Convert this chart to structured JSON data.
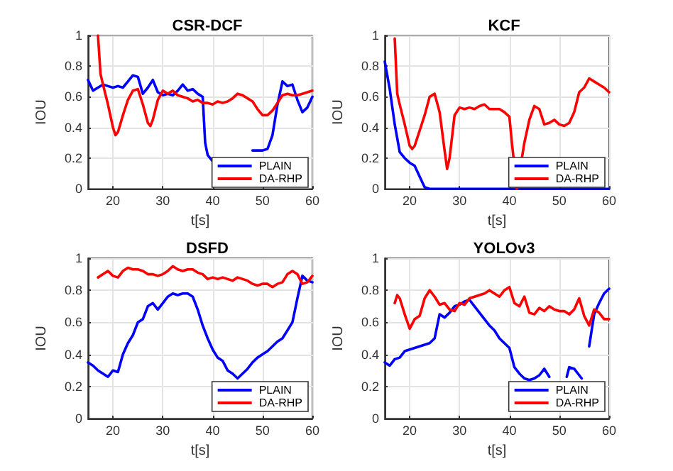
{
  "chart_data": [
    {
      "type": "line",
      "title": "CSR-DCF",
      "xlabel": "t[s]",
      "ylabel": "IOU",
      "xlim": [
        15,
        60
      ],
      "xticks": [
        20,
        30,
        40,
        50,
        60
      ],
      "ylim": [
        0,
        1
      ],
      "yticks": [
        0,
        0.2,
        0.4,
        0.6,
        0.8,
        1
      ],
      "grid": true,
      "legend": "bottom right",
      "marker": "none",
      "line_style": "solid",
      "series": [
        {
          "name": "PLAIN",
          "color": "#0000ff",
          "x": [
            15,
            16,
            17,
            18,
            19,
            20,
            21,
            22,
            23,
            24,
            25,
            26,
            27,
            28,
            29,
            30,
            31,
            32,
            33,
            34,
            35,
            36,
            37,
            38,
            38.5,
            39,
            40,
            41,
            48,
            49,
            50,
            51,
            52,
            53,
            54,
            55,
            56,
            57,
            58,
            59,
            60
          ],
          "values": [
            0.71,
            0.64,
            0.66,
            0.68,
            0.67,
            0.66,
            0.67,
            0.66,
            0.7,
            0.74,
            0.73,
            0.62,
            0.66,
            0.71,
            0.63,
            0.61,
            0.62,
            0.61,
            0.64,
            0.68,
            0.64,
            0.65,
            0.62,
            0.6,
            0.3,
            0.22,
            0.18,
            null,
            0.25,
            0.25,
            0.25,
            0.26,
            0.35,
            0.55,
            0.7,
            0.67,
            0.68,
            0.58,
            0.5,
            0.53,
            0.6
          ]
        },
        {
          "name": "DA-RHP",
          "color": "#ff0000",
          "x": [
            17,
            17.5,
            18,
            19,
            20,
            20.5,
            21,
            22,
            23,
            24,
            25,
            26,
            27,
            27.5,
            28,
            29,
            30,
            31,
            32,
            33,
            34,
            35,
            36,
            37,
            38,
            39,
            40,
            41,
            42,
            43,
            44,
            45,
            46,
            47,
            48,
            49,
            50,
            51,
            52,
            53,
            54,
            55,
            56,
            57,
            58,
            59,
            60
          ],
          "values": [
            1,
            0.75,
            0.68,
            0.55,
            0.4,
            0.35,
            0.37,
            0.48,
            0.58,
            0.64,
            0.65,
            0.55,
            0.43,
            0.41,
            0.45,
            0.58,
            0.64,
            0.62,
            0.64,
            0.61,
            0.6,
            0.59,
            0.57,
            0.58,
            0.56,
            0.56,
            0.55,
            0.57,
            0.56,
            0.57,
            0.59,
            0.62,
            0.61,
            0.59,
            0.57,
            0.52,
            0.48,
            0.48,
            0.51,
            0.56,
            0.61,
            0.62,
            0.61,
            0.61,
            0.62,
            0.63,
            0.64
          ]
        }
      ]
    },
    {
      "type": "line",
      "title": "KCF",
      "xlabel": "t[s]",
      "ylabel": "IOU",
      "xlim": [
        15,
        60
      ],
      "xticks": [
        20,
        30,
        40,
        50,
        60
      ],
      "ylim": [
        0,
        1
      ],
      "yticks": [
        0,
        0.2,
        0.4,
        0.6,
        0.8,
        1
      ],
      "grid": true,
      "legend": "bottom right",
      "marker": "none",
      "line_style": "solid",
      "series": [
        {
          "name": "PLAIN",
          "color": "#0000ff",
          "x": [
            15,
            16,
            17,
            18,
            19,
            20,
            21,
            22,
            23,
            24,
            30,
            40,
            50,
            60
          ],
          "values": [
            0.83,
            0.65,
            0.42,
            0.24,
            0.2,
            0.17,
            0.15,
            0.08,
            0.01,
            0,
            0,
            0,
            0,
            0
          ]
        },
        {
          "name": "DA-RHP",
          "color": "#ff0000",
          "x": [
            17,
            17.5,
            18,
            19,
            20,
            20.5,
            21,
            22,
            23,
            24,
            25,
            26,
            27,
            27.5,
            28,
            29,
            30,
            31,
            32,
            33,
            34,
            35,
            36,
            37,
            38,
            39,
            40,
            40.5,
            41.5,
            43,
            44,
            45,
            46,
            47,
            48,
            49,
            50,
            51,
            52,
            53,
            54,
            55,
            56,
            57,
            58,
            59,
            60
          ],
          "values": [
            0.98,
            0.62,
            0.55,
            0.42,
            0.28,
            0.26,
            0.28,
            0.38,
            0.48,
            0.6,
            0.62,
            0.5,
            0.25,
            0.13,
            0.2,
            0.48,
            0.53,
            0.52,
            0.53,
            0.52,
            0.54,
            0.55,
            0.52,
            0.52,
            0.52,
            0.5,
            0.47,
            0.3,
            0,
            0.3,
            0.45,
            0.54,
            0.52,
            0.42,
            0.43,
            0.45,
            0.42,
            0.41,
            0.43,
            0.5,
            0.63,
            0.66,
            0.72,
            0.7,
            0.68,
            0.66,
            0.63
          ]
        }
      ]
    },
    {
      "type": "line",
      "title": "DSFD",
      "xlabel": "t[s]",
      "ylabel": "IOU",
      "xlim": [
        15,
        60
      ],
      "xticks": [
        20,
        30,
        40,
        50,
        60
      ],
      "ylim": [
        0,
        1
      ],
      "yticks": [
        0,
        0.2,
        0.4,
        0.6,
        0.8,
        1
      ],
      "grid": true,
      "legend": "bottom right",
      "marker": "none",
      "line_style": "solid",
      "series": [
        {
          "name": "PLAIN",
          "color": "#0000ff",
          "x": [
            15,
            16,
            17,
            18,
            19,
            20,
            21,
            22,
            23,
            24,
            25,
            26,
            27,
            28,
            29,
            30,
            31,
            32,
            33,
            34,
            35,
            36,
            37,
            38,
            39,
            40,
            41,
            42,
            43,
            44,
            45,
            46,
            47,
            48,
            49,
            50,
            51,
            52,
            53,
            54,
            55,
            56,
            57,
            58,
            59,
            60
          ],
          "values": [
            0.35,
            0.33,
            0.3,
            0.28,
            0.26,
            0.3,
            0.29,
            0.4,
            0.47,
            0.52,
            0.6,
            0.62,
            0.7,
            0.72,
            0.68,
            0.72,
            0.76,
            0.78,
            0.77,
            0.78,
            0.78,
            0.76,
            0.68,
            0.58,
            0.5,
            0.43,
            0.38,
            0.36,
            0.3,
            0.28,
            0.25,
            0.28,
            0.31,
            0.35,
            0.38,
            0.4,
            0.42,
            0.45,
            0.48,
            0.5,
            0.55,
            0.6,
            0.75,
            0.89,
            0.86,
            0.85
          ]
        },
        {
          "name": "DA-RHP",
          "color": "#ff0000",
          "x": [
            17,
            18,
            19,
            20,
            21,
            22,
            23,
            24,
            25,
            26,
            27,
            28,
            29,
            30,
            31,
            32,
            33,
            34,
            35,
            36,
            37,
            38,
            39,
            40,
            41,
            42,
            43,
            44,
            45,
            46,
            47,
            48,
            49,
            50,
            51,
            52,
            53,
            54,
            55,
            56,
            57,
            58,
            59,
            60
          ],
          "values": [
            0.88,
            0.9,
            0.92,
            0.89,
            0.88,
            0.92,
            0.94,
            0.93,
            0.93,
            0.92,
            0.9,
            0.9,
            0.89,
            0.9,
            0.92,
            0.95,
            0.93,
            0.92,
            0.93,
            0.93,
            0.91,
            0.9,
            0.87,
            0.88,
            0.87,
            0.88,
            0.87,
            0.86,
            0.88,
            0.87,
            0.86,
            0.84,
            0.83,
            0.84,
            0.84,
            0.82,
            0.84,
            0.85,
            0.9,
            0.92,
            0.9,
            0.84,
            0.85,
            0.89
          ]
        }
      ]
    },
    {
      "type": "line",
      "title": "YOLOv3",
      "xlabel": "t[s]",
      "ylabel": "IOU",
      "xlim": [
        15,
        60
      ],
      "xticks": [
        20,
        30,
        40,
        50,
        60
      ],
      "ylim": [
        0,
        1
      ],
      "yticks": [
        0,
        0.2,
        0.4,
        0.6,
        0.8,
        1
      ],
      "grid": true,
      "legend": "bottom right",
      "marker": "none",
      "line_style": "solid",
      "series": [
        {
          "name": "PLAIN",
          "color": "#0000ff",
          "x": [
            15,
            16,
            17,
            18,
            19,
            20,
            22,
            24,
            25,
            26,
            27,
            28,
            29,
            30,
            31,
            32,
            33,
            34,
            35,
            36,
            37,
            38,
            39,
            40,
            41,
            42,
            43,
            44,
            45,
            46,
            47,
            48,
            49,
            51.5,
            52,
            53,
            54,
            54.5,
            55,
            56,
            57,
            58,
            59,
            60
          ],
          "values": [
            0.35,
            0.33,
            0.37,
            0.38,
            0.42,
            0.43,
            0.45,
            0.47,
            0.5,
            0.65,
            0.63,
            0.66,
            0.7,
            0.71,
            0.73,
            0.74,
            0.7,
            0.66,
            0.62,
            0.58,
            0.55,
            0.5,
            0.47,
            0.44,
            0.32,
            0.28,
            0.25,
            0.24,
            0.25,
            0.27,
            0.31,
            0.26,
            null,
            0.26,
            0.32,
            0.31,
            0.27,
            0.25,
            null,
            0.45,
            0.65,
            0.72,
            0.78,
            0.81
          ]
        },
        {
          "name": "DA-RHP",
          "color": "#ff0000",
          "x": [
            17,
            17.5,
            18,
            19,
            20,
            21,
            22,
            23,
            24,
            25,
            26,
            27,
            28,
            29,
            30,
            31,
            32,
            33,
            34,
            35,
            36,
            37,
            38,
            39,
            40,
            41,
            42,
            43,
            44,
            45,
            46,
            47,
            48,
            49,
            50,
            51,
            52,
            53,
            54,
            55,
            56,
            57,
            58,
            59,
            60
          ],
          "values": [
            0.72,
            0.77,
            0.75,
            0.65,
            0.56,
            0.62,
            0.64,
            0.75,
            0.8,
            0.76,
            0.71,
            0.72,
            0.68,
            0.67,
            0.72,
            0.71,
            0.75,
            0.76,
            0.77,
            0.78,
            0.8,
            0.78,
            0.76,
            0.8,
            0.82,
            0.72,
            0.7,
            0.76,
            0.66,
            0.65,
            0.69,
            0.67,
            0.7,
            0.68,
            0.67,
            0.67,
            0.65,
            0.68,
            0.75,
            0.64,
            0.58,
            0.68,
            0.66,
            0.62,
            0.62
          ]
        }
      ]
    }
  ]
}
